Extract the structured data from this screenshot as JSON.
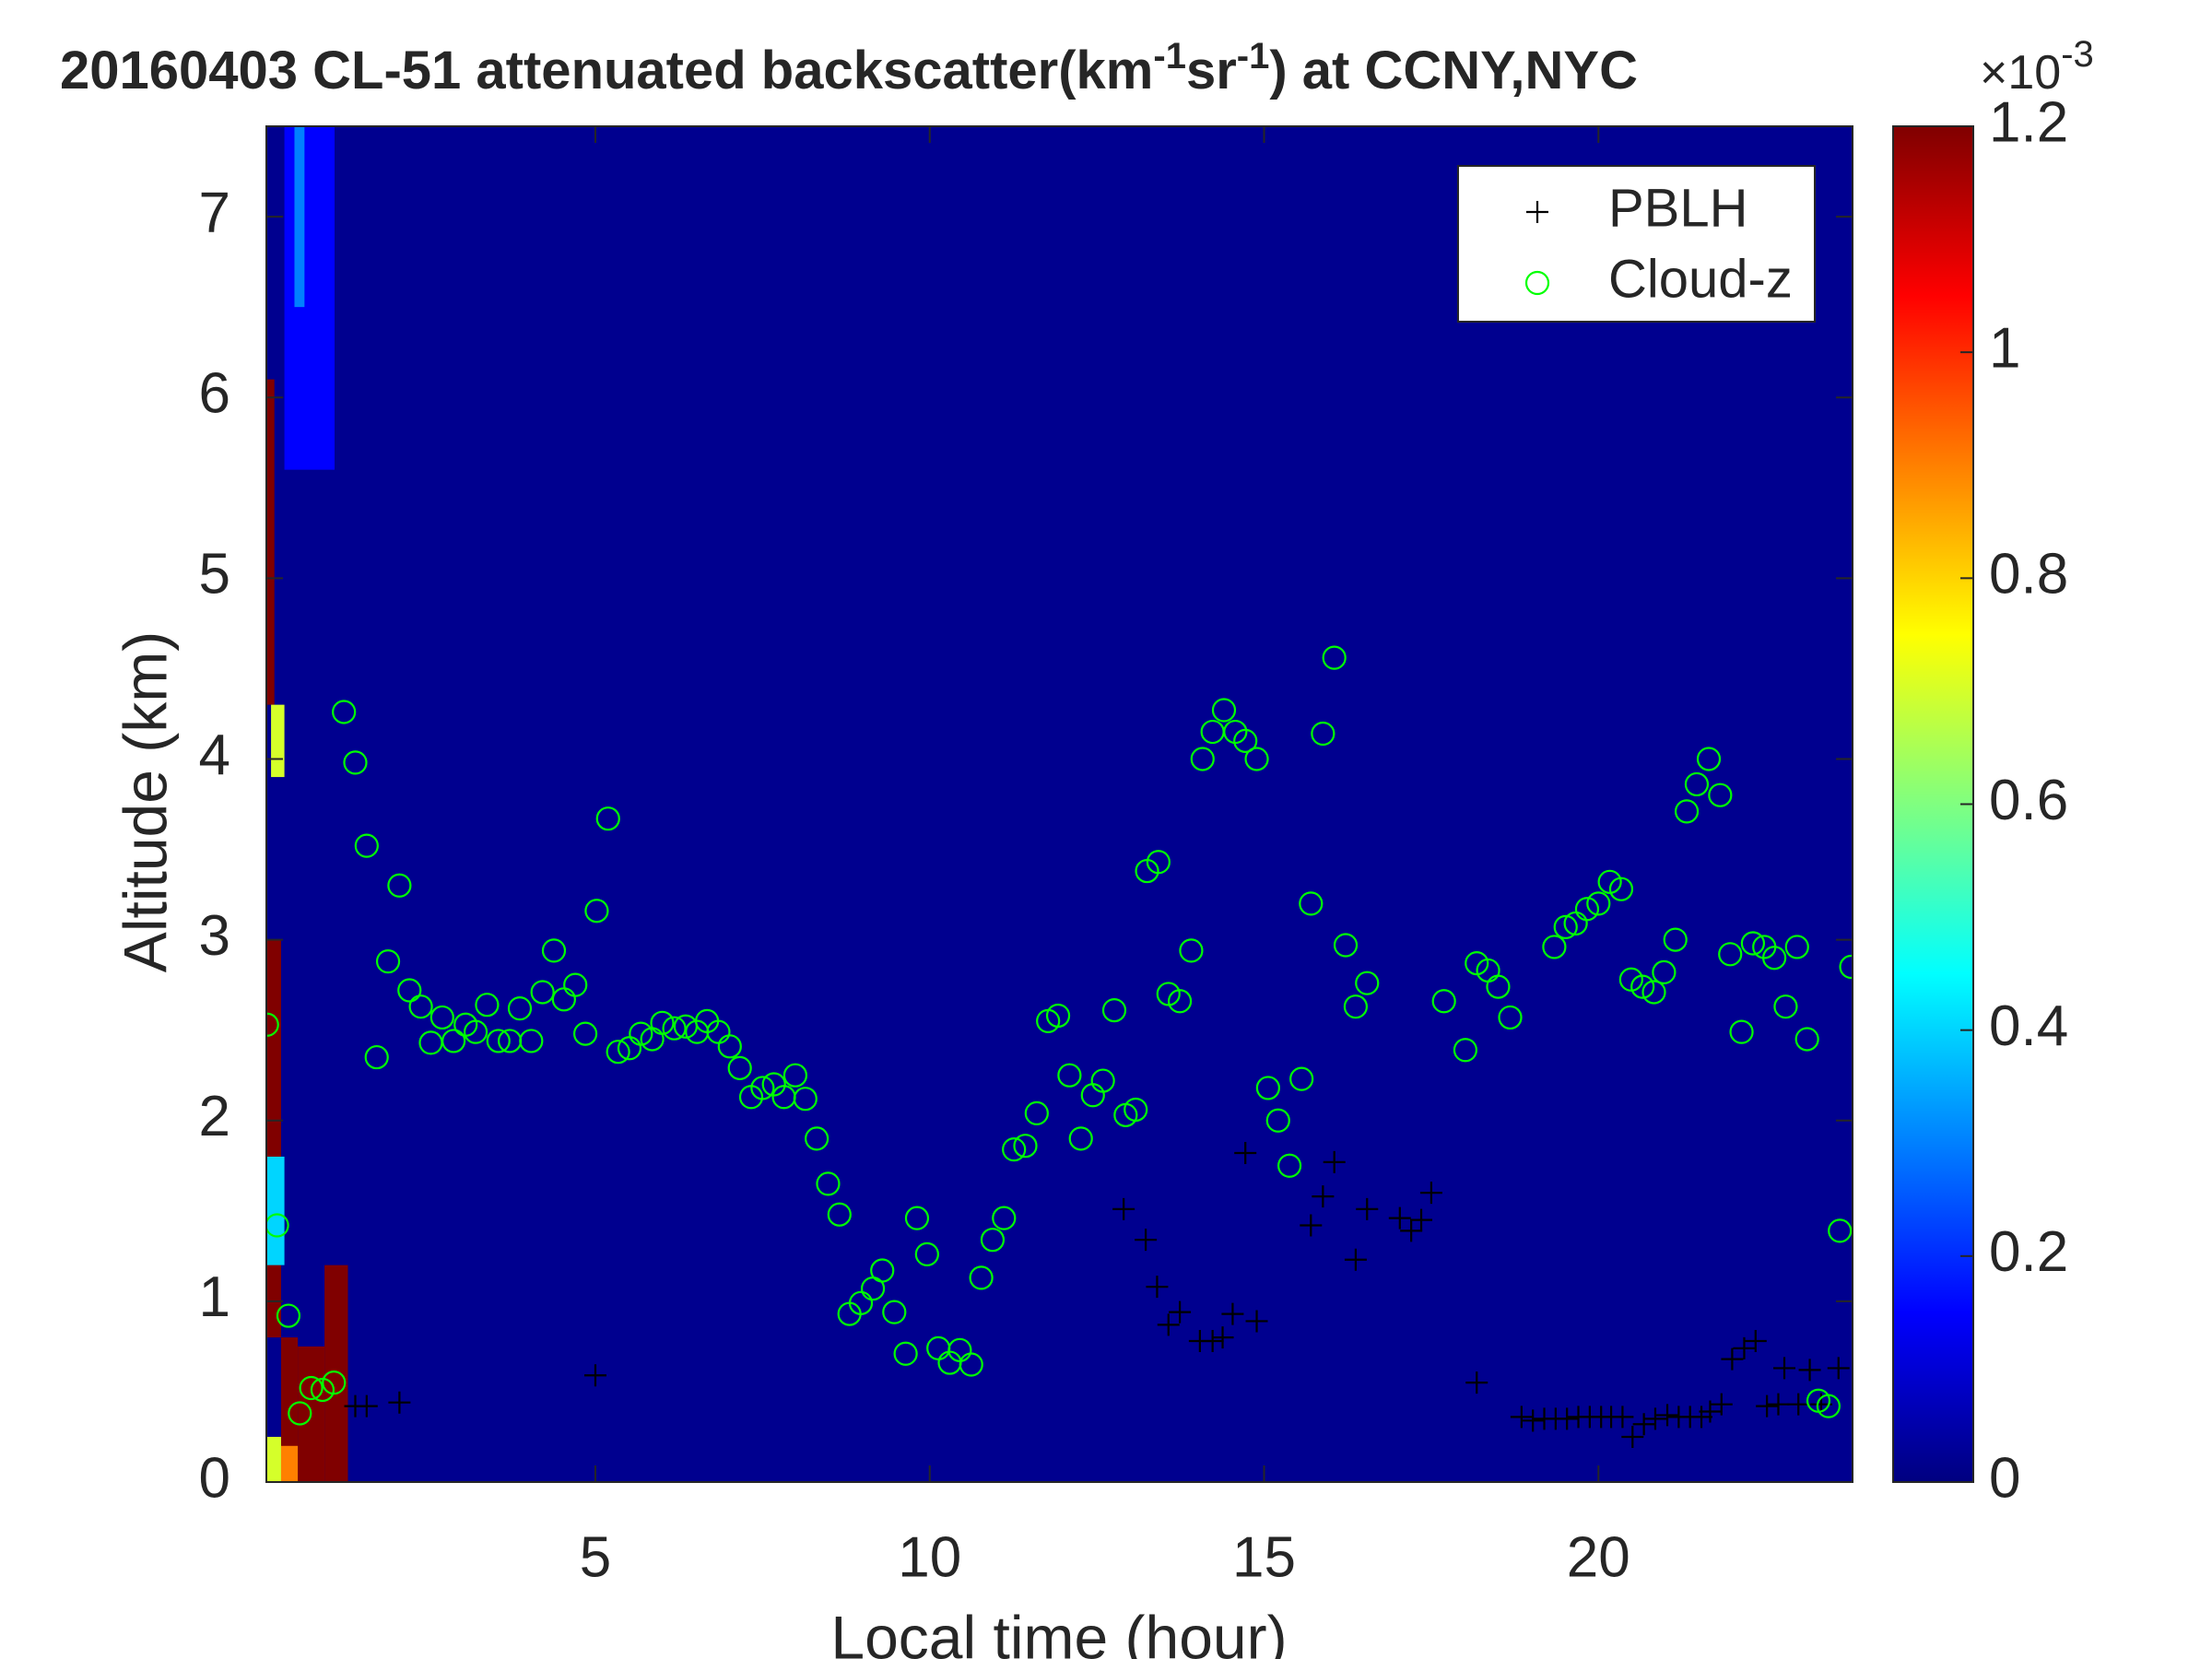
{
  "chart_data": {
    "type": "scatter",
    "title_parts": [
      "20160403  CL-51 attenuated backscatter(km",
      "-1",
      "sr",
      "-1",
      ") at CCNY,NYC"
    ],
    "xlabel": "Local time (hour)",
    "ylabel": "Altitude (km)",
    "xlim": [
      0.08,
      23.8
    ],
    "ylim": [
      0,
      7.5
    ],
    "xticks": [
      5,
      10,
      15,
      20
    ],
    "yticks": [
      0,
      1,
      2,
      3,
      4,
      5,
      6,
      7
    ],
    "legend": "upper right",
    "colormap": "jet",
    "heatmap": {
      "x0": [
        0.08,
        0.3,
        0.55,
        0.95,
        0.08,
        0.3,
        0.08,
        0.15,
        0.08,
        0.35,
        0.5
      ],
      "x1": [
        0.3,
        0.55,
        0.95,
        1.3,
        0.3,
        0.55,
        0.2,
        0.35,
        0.35,
        1.1,
        0.65
      ],
      "y0": [
        0.8,
        0,
        0,
        0,
        0,
        0,
        4.3,
        3.9,
        1.2,
        5.6,
        6.5
      ],
      "y1": [
        3.0,
        0.8,
        0.75,
        1.2,
        0.25,
        0.2,
        6.1,
        4.3,
        1.8,
        7.5,
        7.5
      ],
      "values": [
        0.0012,
        0.0012,
        0.0012,
        0.0012,
        0.0007,
        0.0009,
        0.0012,
        0.0007,
        0.0004,
        0.00015,
        0.0003
      ]
    },
    "colorbar": {
      "lim": [
        0,
        0.0012
      ],
      "ticks": [
        {
          "value": 0,
          "label": "0"
        },
        {
          "value": 0.0002,
          "label": "0.2"
        },
        {
          "value": 0.0004,
          "label": "0.4"
        },
        {
          "value": 0.0006,
          "label": "0.6"
        },
        {
          "value": 0.0008,
          "label": "0.8"
        },
        {
          "value": 0.001,
          "label": "1"
        },
        {
          "value": 0.0012,
          "label": "1.2"
        }
      ],
      "multiplier": "×10",
      "exponent": "-3"
    },
    "series": [
      {
        "name": "PBLH",
        "color": "#000000",
        "marker": "+",
        "x": [
          1.41,
          1.58,
          2.07,
          5.0,
          12.9,
          13.23,
          13.4,
          13.57,
          13.74,
          14.04,
          14.23,
          14.38,
          14.53,
          14.72,
          14.89,
          15.7,
          15.88,
          16.05,
          16.37,
          16.54,
          17.03,
          17.2,
          17.35,
          17.5,
          18.18,
          18.85,
          19.02,
          19.19,
          19.36,
          19.53,
          19.7,
          19.87,
          20.04,
          20.19,
          20.36,
          20.51,
          20.68,
          20.85,
          21.03,
          21.2,
          21.37,
          21.54,
          21.67,
          21.84,
          22.0,
          22.18,
          22.35,
          22.52,
          22.69,
          22.78,
          22.99,
          23.16,
          23.33,
          23.59
        ],
        "values": [
          0.42,
          0.42,
          0.44,
          0.59,
          1.51,
          1.34,
          1.08,
          0.87,
          0.94,
          0.78,
          0.78,
          0.8,
          0.93,
          1.82,
          0.89,
          1.42,
          1.58,
          1.77,
          1.23,
          1.51,
          1.46,
          1.39,
          1.45,
          1.6,
          0.55,
          0.36,
          0.34,
          0.35,
          0.35,
          0.35,
          0.36,
          0.36,
          0.36,
          0.36,
          0.36,
          0.25,
          0.32,
          0.35,
          0.37,
          0.36,
          0.36,
          0.36,
          0.39,
          0.43,
          0.68,
          0.74,
          0.78,
          0.42,
          0.43,
          0.63,
          0.43,
          0.62,
          0.43,
          0.63
        ]
      },
      {
        "name": "Cloud-z",
        "color": "#00ff00",
        "marker": "o",
        "x": [
          0.09,
          0.24,
          0.41,
          0.58,
          0.75,
          0.92,
          1.09,
          1.24,
          1.41,
          1.58,
          1.73,
          1.9,
          2.07,
          2.22,
          2.39,
          2.54,
          2.71,
          2.88,
          3.06,
          3.21,
          3.38,
          3.55,
          3.72,
          3.87,
          4.04,
          4.21,
          4.38,
          4.53,
          4.7,
          4.85,
          5.02,
          5.19,
          5.34,
          5.51,
          5.68,
          5.85,
          6.0,
          6.18,
          6.35,
          6.52,
          6.67,
          6.84,
          7.01,
          7.16,
          7.33,
          7.5,
          7.67,
          7.82,
          7.99,
          8.14,
          8.31,
          8.48,
          8.65,
          8.8,
          8.97,
          9.15,
          9.29,
          9.47,
          9.64,
          9.81,
          9.96,
          10.13,
          10.3,
          10.45,
          10.62,
          10.77,
          10.94,
          11.11,
          11.26,
          11.43,
          11.6,
          11.77,
          11.92,
          12.09,
          12.26,
          12.44,
          12.59,
          12.76,
          12.93,
          13.08,
          13.25,
          13.42,
          13.57,
          13.74,
          13.91,
          14.08,
          14.23,
          14.4,
          14.57,
          14.72,
          14.89,
          15.06,
          15.21,
          15.38,
          15.56,
          15.7,
          15.88,
          16.05,
          16.22,
          16.37,
          16.54,
          17.69,
          18.01,
          18.18,
          18.35,
          18.5,
          18.68,
          19.34,
          19.51,
          19.66,
          19.83,
          20.0,
          20.17,
          20.34,
          20.49,
          20.66,
          20.83,
          20.98,
          21.15,
          21.32,
          21.47,
          21.65,
          21.82,
          21.97,
          22.14,
          22.31,
          22.48,
          22.63,
          22.8,
          22.97,
          23.12,
          23.29,
          23.44,
          23.61,
          23.78
        ],
        "values": [
          2.53,
          1.42,
          0.92,
          0.38,
          0.52,
          0.51,
          0.55,
          4.26,
          3.98,
          3.52,
          2.35,
          2.88,
          3.3,
          2.72,
          2.63,
          2.43,
          2.57,
          2.44,
          2.53,
          2.49,
          2.64,
          2.44,
          2.44,
          2.62,
          2.44,
          2.71,
          2.94,
          2.67,
          2.75,
          2.48,
          3.16,
          3.67,
          2.38,
          2.4,
          2.48,
          2.45,
          2.54,
          2.51,
          2.52,
          2.49,
          2.55,
          2.49,
          2.41,
          2.29,
          2.13,
          2.18,
          2.2,
          2.13,
          2.25,
          2.12,
          1.9,
          1.65,
          1.48,
          0.93,
          0.99,
          1.07,
          1.17,
          0.94,
          0.71,
          1.46,
          1.26,
          0.74,
          0.66,
          0.73,
          0.65,
          1.13,
          1.34,
          1.46,
          1.84,
          1.86,
          2.04,
          2.55,
          2.58,
          2.25,
          1.9,
          2.14,
          2.22,
          2.61,
          2.03,
          2.06,
          3.38,
          3.43,
          2.7,
          2.66,
          2.94,
          4.0,
          4.15,
          4.27,
          4.15,
          4.1,
          4.0,
          2.18,
          2.0,
          1.75,
          2.23,
          3.2,
          4.14,
          4.56,
          2.97,
          2.63,
          2.76,
          2.66,
          2.39,
          2.87,
          2.83,
          2.74,
          2.57,
          2.96,
          3.07,
          3.09,
          3.17,
          3.2,
          3.32,
          3.28,
          2.78,
          2.74,
          2.71,
          2.82,
          3.0,
          3.71,
          3.86,
          4.0,
          3.8,
          2.92,
          2.49,
          2.98,
          2.96,
          2.9,
          2.63,
          2.96,
          2.45,
          0.45,
          0.42,
          1.39,
          2.85
        ]
      }
    ]
  }
}
